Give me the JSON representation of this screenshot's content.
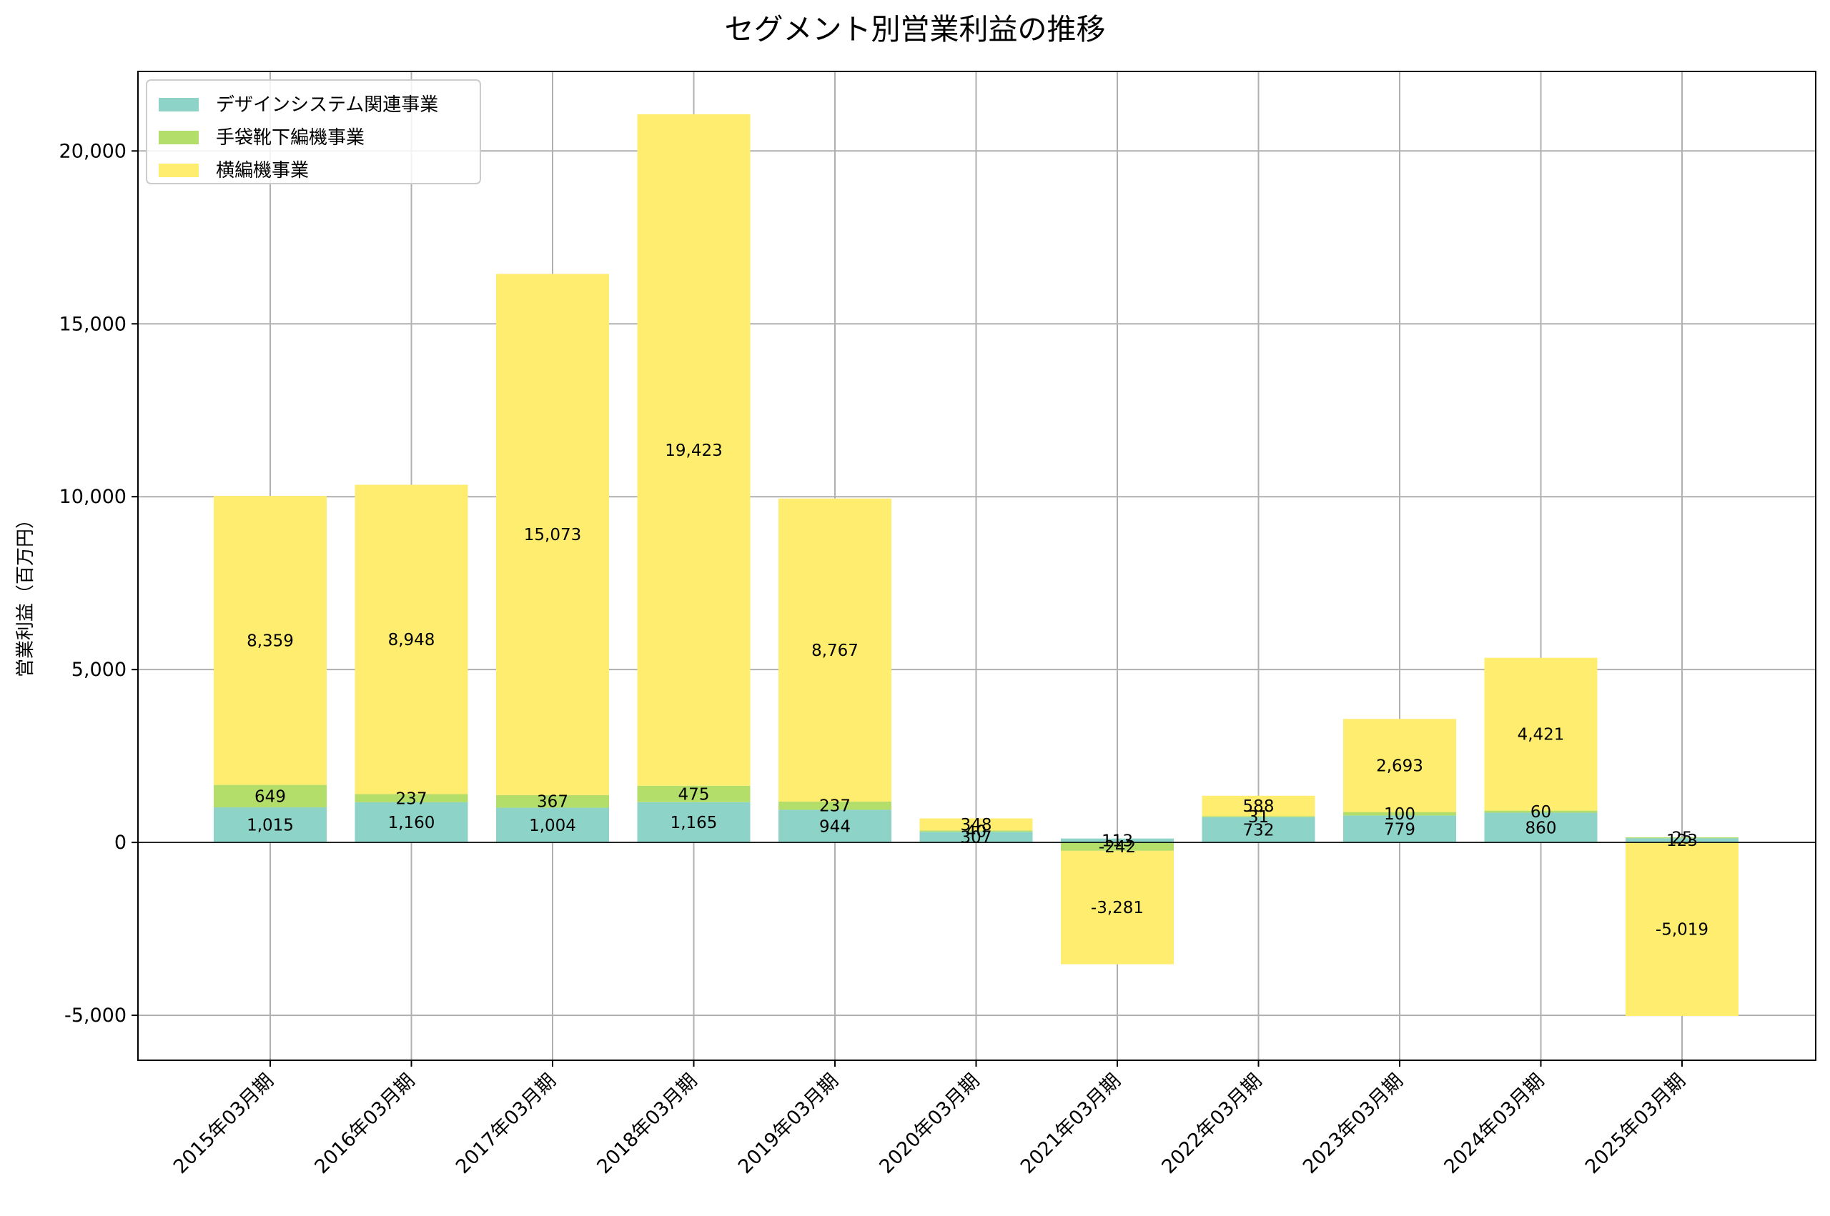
{
  "chart_data": {
    "type": "bar",
    "stacked": true,
    "title": "セグメント別営業利益の推移",
    "xlabel": "",
    "ylabel": "営業利益（百万円）",
    "ylim": [
      -6300,
      22300
    ],
    "yticks": [
      -5000,
      0,
      5000,
      10000,
      15000,
      20000
    ],
    "ytick_labels": [
      "-5,000",
      "0",
      "5,000",
      "10,000",
      "15,000",
      "20,000"
    ],
    "grid": true,
    "legend_position": "top-left",
    "categories": [
      "2015年03月期",
      "2016年03月期",
      "2017年03月期",
      "2018年03月期",
      "2019年03月期",
      "2020年03月期",
      "2021年03月期",
      "2022年03月期",
      "2023年03月期",
      "2024年03月期",
      "2025年03月期"
    ],
    "series": [
      {
        "name": "デザインシステム関連事業",
        "color": "#8dd3c7",
        "values": [
          1015,
          1160,
          1004,
          1165,
          944,
          307,
          113,
          732,
          779,
          860,
          123
        ],
        "labels": [
          "1,015",
          "1,160",
          "1,004",
          "1,165",
          "944",
          "307",
          "113",
          "732",
          "779",
          "860",
          "123"
        ]
      },
      {
        "name": "手袋靴下編機事業",
        "color": "#b3de69",
        "values": [
          649,
          237,
          367,
          475,
          237,
          40,
          -242,
          31,
          100,
          60,
          25
        ],
        "labels": [
          "649",
          "237",
          "367",
          "475",
          "237",
          "40",
          "-242",
          "31",
          "100",
          "60",
          "25"
        ]
      },
      {
        "name": "横編機事業",
        "color": "#ffed6f",
        "values": [
          8359,
          8948,
          15073,
          19423,
          8767,
          348,
          -3281,
          588,
          2693,
          4421,
          -5019
        ],
        "labels": [
          "8,359",
          "8,948",
          "15,073",
          "19,423",
          "8,767",
          "348",
          "-3,281",
          "588",
          "2,693",
          "4,421",
          "-5,019"
        ]
      }
    ]
  }
}
